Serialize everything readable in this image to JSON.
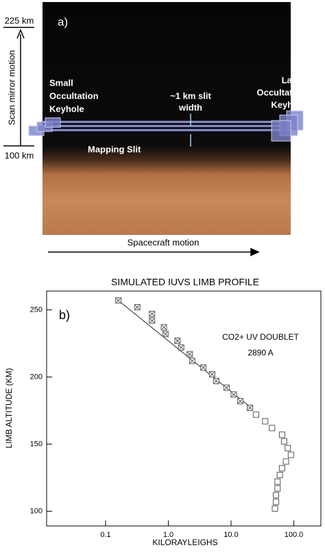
{
  "diagram": {
    "label": "a)",
    "top_altitude": "225 km",
    "bottom_altitude": "100 km",
    "scan_axis": "Scan mirror motion",
    "small_keyhole": [
      "Small",
      "Occultation",
      "Keyhole"
    ],
    "slit_width": [
      "~1 km slit",
      "width"
    ],
    "large_keyhole": [
      "Large",
      "Occultation",
      "Keyhole"
    ],
    "mapping_slit": "Mapping Slit",
    "motion": "Spacecraft motion"
  },
  "chart_data": {
    "type": "scatter",
    "title": "SIMULATED IUVS LIMB PROFILE",
    "panel_label": "b)",
    "annotations": [
      "CO2+ UV DOUBLET",
      "2890 A"
    ],
    "x_label": "KILORAYLEIGHS",
    "y_label": "LIMB ALTITUDE (KM)",
    "x_log": true,
    "xlim": [
      0.0115,
      270
    ],
    "ylim": [
      89,
      264
    ],
    "xticks": [
      {
        "value": 0.1,
        "label": "0.1"
      },
      {
        "value": 1,
        "label": "1.0"
      },
      {
        "value": 10,
        "label": "10.0"
      },
      {
        "value": 100,
        "label": "100.0"
      }
    ],
    "yticks": [
      100,
      150,
      200,
      250
    ],
    "series": [
      {
        "color": "#555555",
        "marker": "boxed-cross",
        "x": [
          0.16,
          0.32,
          0.55,
          0.55,
          0.85,
          0.9,
          1.4,
          1.6,
          2.2,
          2.4,
          3.6,
          5.0,
          5.8,
          8.5,
          11,
          14,
          20
        ],
        "y": [
          257,
          252,
          247,
          242,
          237,
          232,
          227,
          222,
          217,
          212,
          207,
          202,
          197,
          192,
          187,
          182,
          177
        ]
      },
      {
        "color": "#555555",
        "marker": "box",
        "x": [
          25,
          35,
          45,
          65,
          70,
          80,
          90,
          75,
          65,
          60,
          55,
          55,
          52,
          52,
          50
        ],
        "y": [
          172,
          167,
          162,
          157,
          152,
          147,
          142,
          137,
          132,
          127,
          122,
          117,
          112,
          107,
          102
        ]
      }
    ],
    "fit_line": {
      "color": "#222222",
      "x": [
        0.15,
        21
      ],
      "y": [
        258,
        177
      ]
    }
  }
}
